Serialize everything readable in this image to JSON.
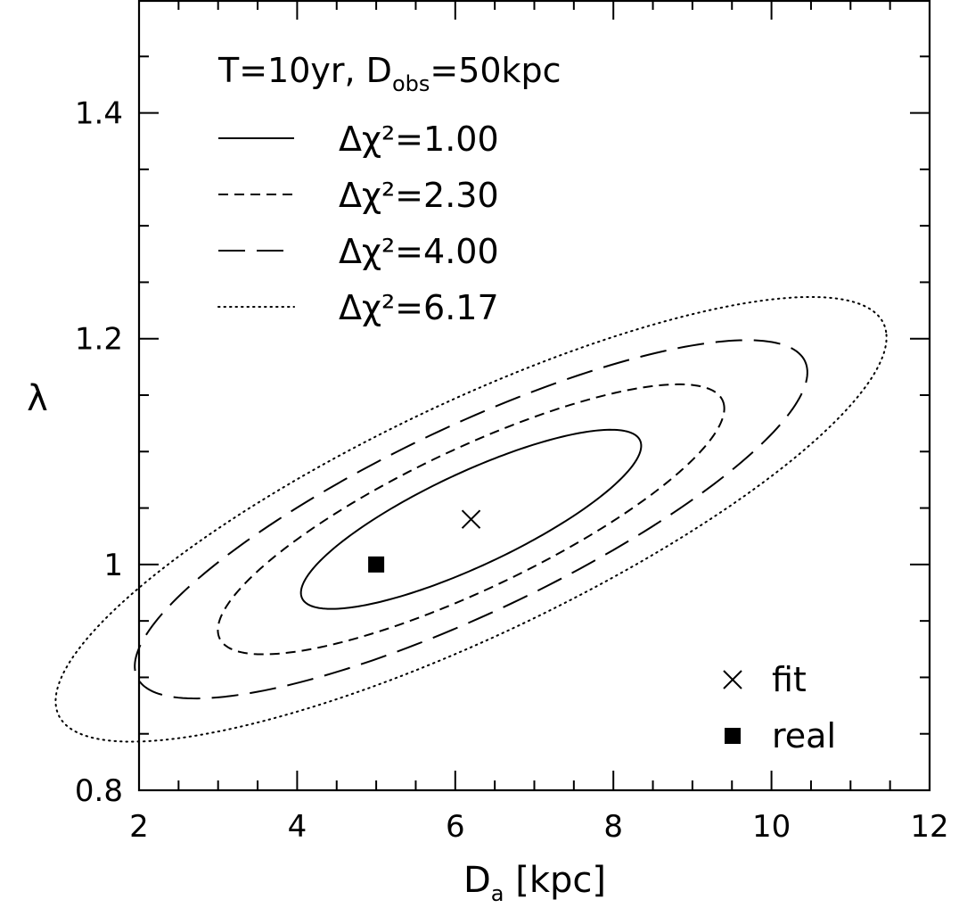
{
  "chart_data": {
    "type": "contour",
    "title_parts": {
      "pre": "T=10yr, D",
      "sub": "obs",
      "post": "=50kpc"
    },
    "xlabel_parts": {
      "main": "D",
      "sub": "a",
      "post": " [kpc]"
    },
    "ylabel": "λ",
    "xlim": [
      2,
      12
    ],
    "ylim": [
      0.8,
      1.5
    ],
    "x_ticks": [
      2,
      4,
      6,
      8,
      10,
      12
    ],
    "x_tick_labels": [
      "2",
      "4",
      "6",
      "8",
      "10",
      "12"
    ],
    "y_ticks": [
      0.8,
      1.0,
      1.2,
      1.4
    ],
    "y_tick_labels": [
      "0.8",
      "1",
      "1.2",
      "1.4"
    ],
    "x_minor_step": 0.5,
    "y_minor_step": 0.05,
    "grid": false,
    "legend_position": "top-left",
    "center": {
      "x": 6.2,
      "y": 1.04
    },
    "contours": [
      {
        "label": "Δχ²=1.00",
        "style": "solid",
        "semi_major": [
          2.15,
          0.067
        ],
        "semi_minor": [
          -0.093,
          0.0425
        ]
      },
      {
        "label": "Δχ²=2.30",
        "style": "short-dash",
        "semi_major": [
          3.2,
          0.101
        ],
        "semi_minor": [
          -0.14,
          0.064
        ]
      },
      {
        "label": "Δχ²=4.00",
        "style": "long-dash",
        "semi_major": [
          4.25,
          0.134
        ],
        "semi_minor": [
          -0.186,
          0.085
        ]
      },
      {
        "label": "Δχ²=6.17",
        "style": "dotted",
        "semi_major": [
          5.25,
          0.166
        ],
        "semi_minor": [
          -0.235,
          0.106
        ]
      }
    ],
    "points": [
      {
        "label": "fit",
        "marker": "cross",
        "x": 6.2,
        "y": 1.04
      },
      {
        "label": "real",
        "marker": "square",
        "x": 5.0,
        "y": 1.0
      }
    ]
  }
}
